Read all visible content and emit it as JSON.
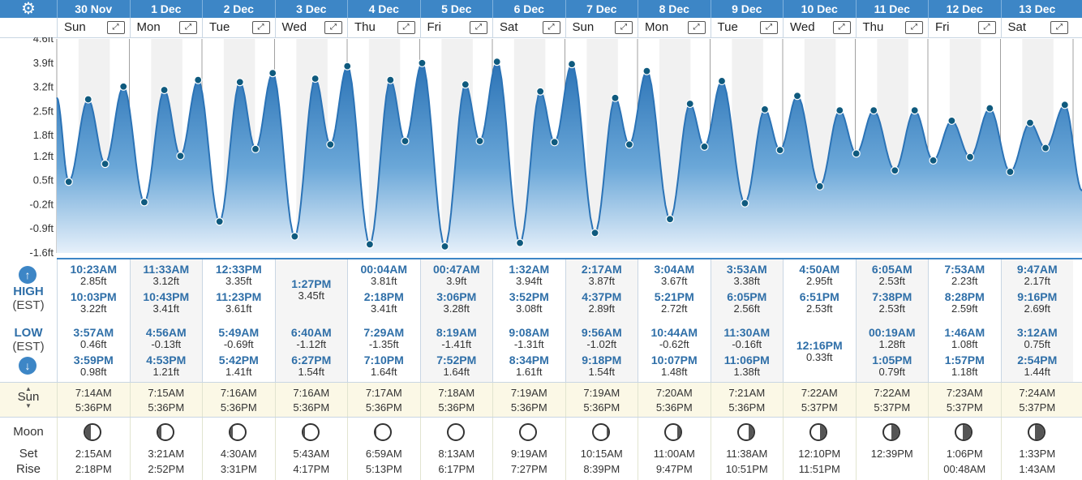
{
  "settings_icon": "gear-icon",
  "colors": {
    "header": "#3d86c6",
    "tide_fill": "#3d86c6",
    "tide_line": "#2b73b6",
    "marker": "#0f5a7e",
    "sun_row": "#fbf8e6"
  },
  "labels": {
    "high": "HIGH",
    "high_zone": "(EST)",
    "low": "LOW",
    "low_zone": "(EST)",
    "sun": "Sun",
    "moon": "Moon",
    "set": "Set",
    "rise": "Rise"
  },
  "expand_glyph": "⤢",
  "days": [
    {
      "date": "30 Nov",
      "weekday": "Sun"
    },
    {
      "date": "1 Dec",
      "weekday": "Mon"
    },
    {
      "date": "2 Dec",
      "weekday": "Tue"
    },
    {
      "date": "3 Dec",
      "weekday": "Wed"
    },
    {
      "date": "4 Dec",
      "weekday": "Thu"
    },
    {
      "date": "5 Dec",
      "weekday": "Fri"
    },
    {
      "date": "6 Dec",
      "weekday": "Sat"
    },
    {
      "date": "7 Dec",
      "weekday": "Sun"
    },
    {
      "date": "8 Dec",
      "weekday": "Mon"
    },
    {
      "date": "9 Dec",
      "weekday": "Tue"
    },
    {
      "date": "10 Dec",
      "weekday": "Wed"
    },
    {
      "date": "11 Dec",
      "weekday": "Thu"
    },
    {
      "date": "12 Dec",
      "weekday": "Fri"
    },
    {
      "date": "13 Dec",
      "weekday": "Sat"
    }
  ],
  "chart_data": {
    "type": "area",
    "y_ticks": [
      "4.6ft",
      "3.9ft",
      "3.2ft",
      "2.5ft",
      "1.8ft",
      "1.2ft",
      "0.5ft",
      "-0.2ft",
      "-0.9ft",
      "-1.6ft"
    ],
    "ylim": [
      -1.6,
      4.6
    ],
    "y_unit": "ft",
    "grid": true,
    "tides": [
      {
        "day": 0,
        "time": "3:57AM",
        "value": 0.46
      },
      {
        "day": 0,
        "time": "10:23AM",
        "value": 2.85
      },
      {
        "day": 0,
        "time": "3:59PM",
        "value": 0.98
      },
      {
        "day": 0,
        "time": "10:03PM",
        "value": 3.22
      },
      {
        "day": 1,
        "time": "4:56AM",
        "value": -0.13
      },
      {
        "day": 1,
        "time": "11:33AM",
        "value": 3.12
      },
      {
        "day": 1,
        "time": "4:53PM",
        "value": 1.21
      },
      {
        "day": 1,
        "time": "10:43PM",
        "value": 3.41
      },
      {
        "day": 2,
        "time": "5:49AM",
        "value": -0.69
      },
      {
        "day": 2,
        "time": "12:33PM",
        "value": 3.35
      },
      {
        "day": 2,
        "time": "5:42PM",
        "value": 1.41
      },
      {
        "day": 2,
        "time": "11:23PM",
        "value": 3.61
      },
      {
        "day": 3,
        "time": "6:40AM",
        "value": -1.12
      },
      {
        "day": 3,
        "time": "1:27PM",
        "value": 3.45
      },
      {
        "day": 3,
        "time": "6:27PM",
        "value": 1.54
      },
      {
        "day": 4,
        "time": "00:04AM",
        "value": 3.81
      },
      {
        "day": 4,
        "time": "7:29AM",
        "value": -1.35
      },
      {
        "day": 4,
        "time": "2:18PM",
        "value": 3.41
      },
      {
        "day": 4,
        "time": "7:10PM",
        "value": 1.64
      },
      {
        "day": 5,
        "time": "00:47AM",
        "value": 3.9
      },
      {
        "day": 5,
        "time": "8:19AM",
        "value": -1.41
      },
      {
        "day": 5,
        "time": "3:06PM",
        "value": 3.28
      },
      {
        "day": 5,
        "time": "7:52PM",
        "value": 1.64
      },
      {
        "day": 6,
        "time": "1:32AM",
        "value": 3.94
      },
      {
        "day": 6,
        "time": "9:08AM",
        "value": -1.31
      },
      {
        "day": 6,
        "time": "3:52PM",
        "value": 3.08
      },
      {
        "day": 6,
        "time": "8:34PM",
        "value": 1.61
      },
      {
        "day": 7,
        "time": "2:17AM",
        "value": 3.87
      },
      {
        "day": 7,
        "time": "9:56AM",
        "value": -1.02
      },
      {
        "day": 7,
        "time": "4:37PM",
        "value": 2.89
      },
      {
        "day": 7,
        "time": "9:18PM",
        "value": 1.54
      },
      {
        "day": 8,
        "time": "3:04AM",
        "value": 3.67
      },
      {
        "day": 8,
        "time": "10:44AM",
        "value": -0.62
      },
      {
        "day": 8,
        "time": "5:21PM",
        "value": 2.72
      },
      {
        "day": 8,
        "time": "10:07PM",
        "value": 1.48
      },
      {
        "day": 9,
        "time": "3:53AM",
        "value": 3.38
      },
      {
        "day": 9,
        "time": "11:30AM",
        "value": -0.16
      },
      {
        "day": 9,
        "time": "6:05PM",
        "value": 2.56
      },
      {
        "day": 9,
        "time": "11:06PM",
        "value": 1.38
      },
      {
        "day": 10,
        "time": "4:50AM",
        "value": 2.95
      },
      {
        "day": 10,
        "time": "12:16PM",
        "value": 0.33
      },
      {
        "day": 10,
        "time": "6:51PM",
        "value": 2.53
      },
      {
        "day": 11,
        "time": "00:19AM",
        "value": 1.28
      },
      {
        "day": 11,
        "time": "6:05AM",
        "value": 2.53
      },
      {
        "day": 11,
        "time": "1:05PM",
        "value": 0.79
      },
      {
        "day": 11,
        "time": "7:38PM",
        "value": 2.53
      },
      {
        "day": 12,
        "time": "1:46AM",
        "value": 1.08
      },
      {
        "day": 12,
        "time": "7:53AM",
        "value": 2.23
      },
      {
        "day": 12,
        "time": "1:57PM",
        "value": 1.18
      },
      {
        "day": 12,
        "time": "8:28PM",
        "value": 2.59
      },
      {
        "day": 13,
        "time": "3:12AM",
        "value": 0.75
      },
      {
        "day": 13,
        "time": "9:47AM",
        "value": 2.17
      },
      {
        "day": 13,
        "time": "2:54PM",
        "value": 1.44
      },
      {
        "day": 13,
        "time": "9:16PM",
        "value": 2.69
      }
    ]
  },
  "tide_table": [
    {
      "highs": [
        [
          "10:23AM",
          "2.85ft"
        ],
        [
          "10:03PM",
          "3.22ft"
        ]
      ],
      "lows": [
        [
          "3:57AM",
          "0.46ft"
        ],
        [
          "3:59PM",
          "0.98ft"
        ]
      ]
    },
    {
      "highs": [
        [
          "11:33AM",
          "3.12ft"
        ],
        [
          "10:43PM",
          "3.41ft"
        ]
      ],
      "lows": [
        [
          "4:56AM",
          "-0.13ft"
        ],
        [
          "4:53PM",
          "1.21ft"
        ]
      ]
    },
    {
      "highs": [
        [
          "12:33PM",
          "3.35ft"
        ],
        [
          "11:23PM",
          "3.61ft"
        ]
      ],
      "lows": [
        [
          "5:49AM",
          "-0.69ft"
        ],
        [
          "5:42PM",
          "1.41ft"
        ]
      ]
    },
    {
      "highs": [
        [
          "1:27PM",
          "3.45ft"
        ]
      ],
      "lows": [
        [
          "6:40AM",
          "-1.12ft"
        ],
        [
          "6:27PM",
          "1.54ft"
        ]
      ]
    },
    {
      "highs": [
        [
          "00:04AM",
          "3.81ft"
        ],
        [
          "2:18PM",
          "3.41ft"
        ]
      ],
      "lows": [
        [
          "7:29AM",
          "-1.35ft"
        ],
        [
          "7:10PM",
          "1.64ft"
        ]
      ]
    },
    {
      "highs": [
        [
          "00:47AM",
          "3.9ft"
        ],
        [
          "3:06PM",
          "3.28ft"
        ]
      ],
      "lows": [
        [
          "8:19AM",
          "-1.41ft"
        ],
        [
          "7:52PM",
          "1.64ft"
        ]
      ]
    },
    {
      "highs": [
        [
          "1:32AM",
          "3.94ft"
        ],
        [
          "3:52PM",
          "3.08ft"
        ]
      ],
      "lows": [
        [
          "9:08AM",
          "-1.31ft"
        ],
        [
          "8:34PM",
          "1.61ft"
        ]
      ]
    },
    {
      "highs": [
        [
          "2:17AM",
          "3.87ft"
        ],
        [
          "4:37PM",
          "2.89ft"
        ]
      ],
      "lows": [
        [
          "9:56AM",
          "-1.02ft"
        ],
        [
          "9:18PM",
          "1.54ft"
        ]
      ]
    },
    {
      "highs": [
        [
          "3:04AM",
          "3.67ft"
        ],
        [
          "5:21PM",
          "2.72ft"
        ]
      ],
      "lows": [
        [
          "10:44AM",
          "-0.62ft"
        ],
        [
          "10:07PM",
          "1.48ft"
        ]
      ]
    },
    {
      "highs": [
        [
          "3:53AM",
          "3.38ft"
        ],
        [
          "6:05PM",
          "2.56ft"
        ]
      ],
      "lows": [
        [
          "11:30AM",
          "-0.16ft"
        ],
        [
          "11:06PM",
          "1.38ft"
        ]
      ]
    },
    {
      "highs": [
        [
          "4:50AM",
          "2.95ft"
        ],
        [
          "6:51PM",
          "2.53ft"
        ]
      ],
      "lows": [
        [
          "12:16PM",
          "0.33ft"
        ]
      ]
    },
    {
      "highs": [
        [
          "6:05AM",
          "2.53ft"
        ],
        [
          "7:38PM",
          "2.53ft"
        ]
      ],
      "lows": [
        [
          "00:19AM",
          "1.28ft"
        ],
        [
          "1:05PM",
          "0.79ft"
        ]
      ]
    },
    {
      "highs": [
        [
          "7:53AM",
          "2.23ft"
        ],
        [
          "8:28PM",
          "2.59ft"
        ]
      ],
      "lows": [
        [
          "1:46AM",
          "1.08ft"
        ],
        [
          "1:57PM",
          "1.18ft"
        ]
      ]
    },
    {
      "highs": [
        [
          "9:47AM",
          "2.17ft"
        ],
        [
          "9:16PM",
          "2.69ft"
        ]
      ],
      "lows": [
        [
          "3:12AM",
          "0.75ft"
        ],
        [
          "2:54PM",
          "1.44ft"
        ]
      ]
    }
  ],
  "sun": [
    [
      "7:14AM",
      "5:36PM"
    ],
    [
      "7:15AM",
      "5:36PM"
    ],
    [
      "7:16AM",
      "5:36PM"
    ],
    [
      "7:16AM",
      "5:36PM"
    ],
    [
      "7:17AM",
      "5:36PM"
    ],
    [
      "7:18AM",
      "5:36PM"
    ],
    [
      "7:19AM",
      "5:36PM"
    ],
    [
      "7:19AM",
      "5:36PM"
    ],
    [
      "7:20AM",
      "5:36PM"
    ],
    [
      "7:21AM",
      "5:36PM"
    ],
    [
      "7:22AM",
      "5:37PM"
    ],
    [
      "7:22AM",
      "5:37PM"
    ],
    [
      "7:23AM",
      "5:37PM"
    ],
    [
      "7:24AM",
      "5:37PM"
    ]
  ],
  "moon": [
    {
      "set": "2:15AM",
      "rise": "2:18PM",
      "shade": 0.35
    },
    {
      "set": "3:21AM",
      "rise": "2:52PM",
      "shade": 0.25
    },
    {
      "set": "4:30AM",
      "rise": "3:31PM",
      "shade": 0.18
    },
    {
      "set": "5:43AM",
      "rise": "4:17PM",
      "shade": 0.1
    },
    {
      "set": "6:59AM",
      "rise": "5:13PM",
      "shade": 0.03
    },
    {
      "set": "8:13AM",
      "rise": "6:17PM",
      "shade": 0.0
    },
    {
      "set": "9:19AM",
      "rise": "7:27PM",
      "shade": 0.04
    },
    {
      "set": "10:15AM",
      "rise": "8:39PM",
      "shade": 0.12
    },
    {
      "set": "11:00AM",
      "rise": "9:47PM",
      "shade": 0.22
    },
    {
      "set": "11:38AM",
      "rise": "10:51PM",
      "shade": 0.32
    },
    {
      "set": "12:10PM",
      "rise": "11:51PM",
      "shade": 0.42
    },
    {
      "set": "12:39PM",
      "rise": "",
      "shade": 0.5
    },
    {
      "set": "1:06PM",
      "rise": "00:48AM",
      "shade": 0.55
    },
    {
      "set": "1:33PM",
      "rise": "1:43AM",
      "shade": 0.62
    }
  ]
}
